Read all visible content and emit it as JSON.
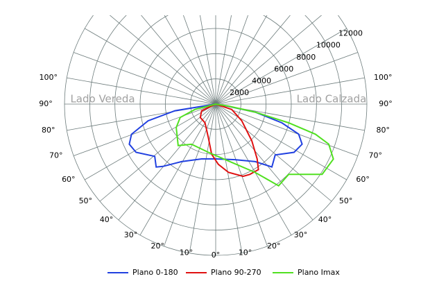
{
  "chart_data": {
    "type": "polar",
    "side_labels": [
      "Lado Vereda",
      "Lado Calzada"
    ],
    "rlim": [
      0,
      12000
    ],
    "rticks": [
      2000,
      4000,
      6000,
      8000,
      10000,
      12000
    ],
    "angle_ticks": [
      {
        "value": -100,
        "label": "100°"
      },
      {
        "value": -90,
        "label": "90°"
      },
      {
        "value": -80,
        "label": "80°"
      },
      {
        "value": -70,
        "label": "70°"
      },
      {
        "value": -60,
        "label": "60°"
      },
      {
        "value": -50,
        "label": "50°"
      },
      {
        "value": -40,
        "label": "40°"
      },
      {
        "value": -30,
        "label": "30°"
      },
      {
        "value": -20,
        "label": "20°"
      },
      {
        "value": -10,
        "label": "10°"
      },
      {
        "value": 0,
        "label": "0°"
      },
      {
        "value": 10,
        "label": "10°"
      },
      {
        "value": 20,
        "label": "20°"
      },
      {
        "value": 30,
        "label": "30°"
      },
      {
        "value": 40,
        "label": "40°"
      },
      {
        "value": 50,
        "label": "50°"
      },
      {
        "value": 60,
        "label": "60°"
      },
      {
        "value": 70,
        "label": "70°"
      },
      {
        "value": 80,
        "label": "80°"
      },
      {
        "value": 90,
        "label": "90°"
      },
      {
        "value": 100,
        "label": "100°"
      }
    ],
    "series": [
      {
        "name": "Plano 0-180",
        "color": "#2040e0",
        "angles": [
          -80.7,
          -76.1,
          -70.3,
          -65.1,
          -58.8,
          -49.4,
          -43.4,
          -40.3,
          -30.7,
          -14.4,
          0,
          19.3,
          34.5,
          41.8,
          49.5,
          58.4,
          65.1,
          70.1,
          74.2,
          78.5,
          80
        ],
        "values": [
          3280,
          5530,
          7100,
          7560,
          7390,
          6370,
          6870,
          6480,
          5310,
          4490,
          4350,
          4670,
          5540,
          6690,
          6210,
          7300,
          7560,
          7000,
          5460,
          3200,
          1040
        ]
      },
      {
        "name": "Plano 90-270",
        "color": "#e01010",
        "angles": [
          -64.5,
          -49,
          -29.7,
          -12.4,
          -4.6,
          2.5,
          10.6,
          20.8,
          25.9,
          33.1,
          37.1,
          44.5,
          57.3,
          71.6
        ],
        "values": [
          1240,
          1620,
          1710,
          2720,
          3990,
          4780,
          5510,
          6130,
          6200,
          6210,
          5460,
          4090,
          2460,
          1340
        ]
      },
      {
        "name": "Plano Imax",
        "color": "#50e020",
        "angles": [
          -75.5,
          -69.3,
          -59.3,
          -42.1,
          -31,
          -8.7,
          12.6,
          30,
          37.6,
          46.1,
          56.6,
          65,
          70.5,
          73.2,
          75.6,
          78.5,
          81
        ],
        "values": [
          1700,
          3010,
          3640,
          4440,
          3720,
          3870,
          4620,
          6260,
          8180,
          8040,
          10120,
          10310,
          9520,
          8270,
          5980,
          3200,
          1020
        ]
      }
    ]
  }
}
